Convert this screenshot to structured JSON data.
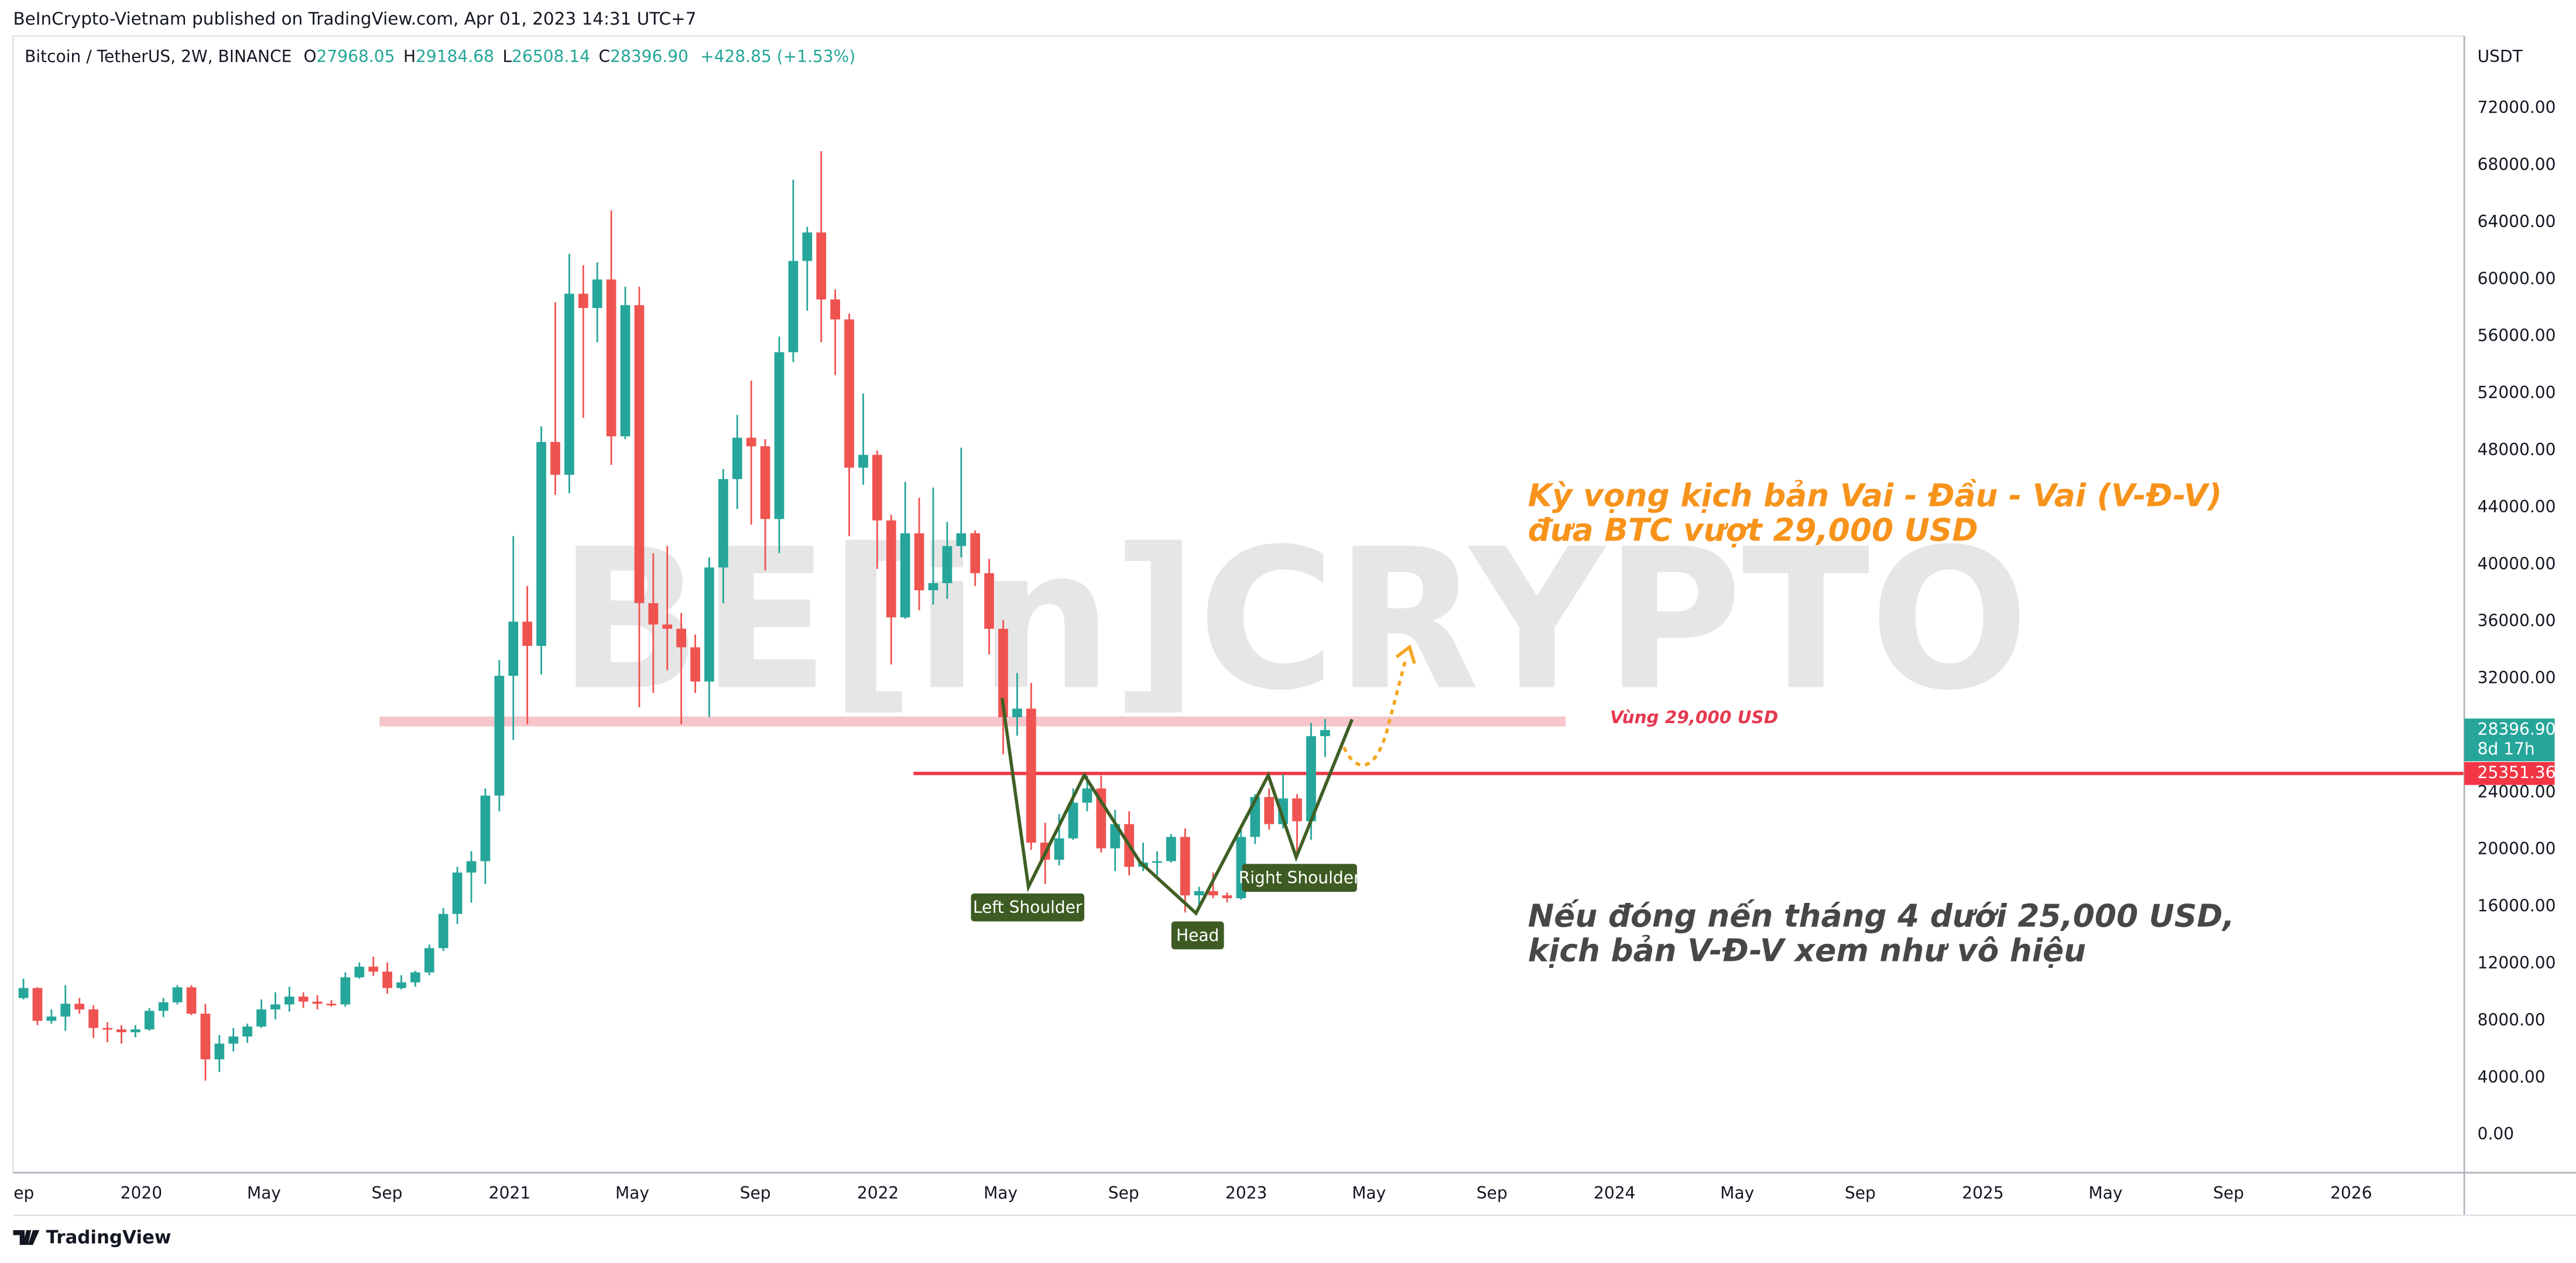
{
  "chart_data": {
    "type": "candlestick",
    "publisher": "BeInCrypto-Vietnam published on TradingView.com, Apr 01, 2023 14:31 UTC+7",
    "title": "Bitcoin / TetherUS, 2W, BINANCE",
    "ohlc_prefixes": [
      "O",
      "H",
      "L",
      "C"
    ],
    "ohlc_value_labels": {
      "open": "27968.05",
      "high": "29184.68",
      "low": "26508.14",
      "close": "28396.90"
    },
    "change_label": "+428.85 (+1.53%)",
    "currency": "USDT",
    "countdown": "8d 17h",
    "up_color": "#26a69a",
    "down_color": "#ef5350",
    "x": [
      2019.68,
      2019.718,
      2019.756,
      2019.794,
      2019.832,
      2019.87,
      2019.908,
      2019.946,
      2019.984,
      2020.022,
      2020.06,
      2020.098,
      2020.136,
      2020.174,
      2020.212,
      2020.25,
      2020.288,
      2020.326,
      2020.364,
      2020.402,
      2020.44,
      2020.478,
      2020.516,
      2020.554,
      2020.592,
      2020.63,
      2020.668,
      2020.706,
      2020.744,
      2020.782,
      2020.82,
      2020.858,
      2020.896,
      2020.934,
      2020.972,
      2021.01,
      2021.048,
      2021.086,
      2021.124,
      2021.162,
      2021.2,
      2021.238,
      2021.276,
      2021.314,
      2021.352,
      2021.39,
      2021.428,
      2021.466,
      2021.504,
      2021.542,
      2021.58,
      2021.618,
      2021.656,
      2021.694,
      2021.732,
      2021.77,
      2021.808,
      2021.846,
      2021.884,
      2021.922,
      2021.96,
      2021.998,
      2022.036,
      2022.074,
      2022.112,
      2022.15,
      2022.188,
      2022.226,
      2022.264,
      2022.302,
      2022.34,
      2022.378,
      2022.416,
      2022.454,
      2022.492,
      2022.53,
      2022.568,
      2022.606,
      2022.644,
      2022.682,
      2022.72,
      2022.758,
      2022.796,
      2022.834,
      2022.872,
      2022.91,
      2022.948,
      2022.986,
      2023.024,
      2023.062,
      2023.1,
      2023.138,
      2023.176,
      2023.214
    ],
    "open": [
      9600,
      10300,
      8000,
      8300,
      9200,
      8800,
      7500,
      7400,
      7200,
      7400,
      8700,
      9300,
      10350,
      8500,
      5300,
      6400,
      6900,
      7600,
      8800,
      9150,
      9700,
      9350,
      9200,
      9150,
      11050,
      11800,
      11450,
      10300,
      10700,
      11400,
      13100,
      15500,
      18400,
      19200,
      23800,
      32200,
      36000,
      34300,
      48600,
      46300,
      59000,
      58000,
      60000,
      49000,
      58200,
      37300,
      35800,
      35500,
      34200,
      31800,
      39800,
      46000,
      48900,
      48300,
      43200,
      54900,
      61300,
      63300,
      58600,
      57200,
      46800,
      47700,
      43100,
      36300,
      42200,
      38200,
      38700,
      41300,
      42200,
      39400,
      35500,
      29300,
      29900,
      20500,
      19300,
      20800,
      23300,
      24300,
      20100,
      21800,
      18800,
      19100,
      19200,
      20900,
      16800,
      17100,
      16800,
      16600,
      20900,
      23700,
      21800,
      23600,
      22000,
      27968.05
    ],
    "high": [
      10950,
      10350,
      8800,
      10500,
      9600,
      9100,
      7900,
      7700,
      7700,
      8900,
      9600,
      10500,
      10500,
      9200,
      7000,
      7500,
      7800,
      9500,
      10000,
      10400,
      10000,
      9800,
      9450,
      11400,
      12100,
      12500,
      12100,
      11200,
      11500,
      13350,
      15900,
      18800,
      19900,
      24300,
      33300,
      42000,
      38500,
      49700,
      58400,
      61800,
      61000,
      61200,
      64850,
      59500,
      59500,
      40800,
      41300,
      36600,
      35100,
      40500,
      46700,
      50500,
      52900,
      48800,
      56000,
      67000,
      63700,
      69000,
      59300,
      57600,
      52000,
      48000,
      43500,
      45800,
      44700,
      45400,
      43000,
      48200,
      42400,
      40400,
      36100,
      32400,
      31700,
      21900,
      22500,
      24300,
      25200,
      25200,
      22800,
      22700,
      20500,
      19900,
      21100,
      21500,
      17400,
      18400,
      17000,
      21400,
      23900,
      24300,
      25300,
      23900,
      28900,
      29184.68
    ],
    "low": [
      9500,
      7700,
      7800,
      7300,
      8500,
      6800,
      6500,
      6400,
      6850,
      7300,
      8250,
      9150,
      8400,
      3800,
      4400,
      5850,
      6450,
      7500,
      8100,
      8650,
      8900,
      8800,
      9000,
      9000,
      10950,
      11150,
      9900,
      10200,
      10400,
      11200,
      12900,
      14800,
      16300,
      17600,
      22700,
      27700,
      28800,
      32300,
      44900,
      45000,
      50300,
      55600,
      47000,
      48800,
      30000,
      31000,
      32600,
      28800,
      31000,
      29300,
      37300,
      43900,
      42800,
      39600,
      40800,
      54200,
      57800,
      55600,
      53300,
      42000,
      45600,
      39700,
      33000,
      36200,
      36800,
      37200,
      37600,
      40500,
      38500,
      33700,
      26700,
      28000,
      20000,
      17600,
      18900,
      20700,
      22700,
      19800,
      18500,
      18200,
      18500,
      18200,
      19100,
      15600,
      15900,
      16600,
      16300,
      16500,
      20400,
      21400,
      21500,
      19600,
      20700,
      26508.14
    ],
    "close": [
      10300,
      8000,
      8300,
      9200,
      8800,
      7500,
      7400,
      7200,
      7400,
      8700,
      9300,
      10350,
      8500,
      5300,
      6400,
      6900,
      7600,
      8800,
      9150,
      9700,
      9350,
      9200,
      9150,
      11050,
      11800,
      11450,
      10300,
      10700,
      11400,
      13100,
      15500,
      18400,
      19200,
      23800,
      32200,
      36000,
      34300,
      48600,
      46300,
      59000,
      58000,
      60000,
      49000,
      58200,
      37300,
      35800,
      35500,
      34200,
      31800,
      39800,
      46000,
      48900,
      48300,
      43200,
      54900,
      61300,
      63300,
      58600,
      57200,
      46800,
      47700,
      43100,
      36300,
      42200,
      38200,
      38700,
      41300,
      42200,
      39400,
      35500,
      29300,
      29900,
      20500,
      19300,
      20800,
      23300,
      24300,
      20100,
      21800,
      18800,
      19100,
      19200,
      20900,
      16800,
      17100,
      16800,
      16600,
      20900,
      23700,
      21800,
      23600,
      22000,
      27968.05,
      28396.9
    ],
    "xlim": [
      2019.652,
      2026.307
    ],
    "xticks": [
      {
        "value": 2019.667,
        "label": "Sep"
      },
      2020,
      {
        "value": 2020.333,
        "label": "May"
      },
      {
        "value": 2020.667,
        "label": "Sep"
      },
      2021,
      {
        "value": 2021.333,
        "label": "May"
      },
      {
        "value": 2021.667,
        "label": "Sep"
      },
      2022,
      {
        "value": 2022.333,
        "label": "May"
      },
      {
        "value": 2022.667,
        "label": "Sep"
      },
      2023,
      {
        "value": 2023.333,
        "label": "May"
      },
      {
        "value": 2023.667,
        "label": "Sep"
      },
      2024,
      {
        "value": 2024.333,
        "label": "May"
      },
      {
        "value": 2024.667,
        "label": "Sep"
      },
      2025,
      {
        "value": 2025.333,
        "label": "May"
      },
      {
        "value": 2025.667,
        "label": "Sep"
      },
      2026
    ],
    "ylim": [
      -2650,
      77069
    ],
    "yticks": [
      {
        "value": 0,
        "label": "0.00"
      },
      {
        "value": 4000,
        "label": "4000.00"
      },
      {
        "value": 8000,
        "label": "8000.00"
      },
      {
        "value": 12000,
        "label": "12000.00"
      },
      {
        "value": 16000,
        "label": "16000.00"
      },
      {
        "value": 20000,
        "label": "20000.00"
      },
      {
        "value": 24000,
        "label": "24000.00"
      },
      {
        "value": 32000,
        "label": "32000.00"
      },
      {
        "value": 36000,
        "label": "36000.00"
      },
      {
        "value": 40000,
        "label": "40000.00"
      },
      {
        "value": 44000,
        "label": "44000.00"
      },
      {
        "value": 48000,
        "label": "48000.00"
      },
      {
        "value": 52000,
        "label": "52000.00"
      },
      {
        "value": 56000,
        "label": "56000.00"
      },
      {
        "value": 60000,
        "label": "60000.00"
      },
      {
        "value": 64000,
        "label": "64000.00"
      },
      {
        "value": 68000,
        "label": "68000.00"
      },
      {
        "value": 72000,
        "label": "72000.00"
      }
    ],
    "grid": false,
    "level": {
      "value": 25351.36,
      "color": "#f23645"
    },
    "zone": {
      "value": 29000,
      "label": "Vùng 29,000 USD",
      "color": "#f7c5cb"
    },
    "pattern_labels": [
      "Left Shoulder",
      "Head",
      "Right Shoulder"
    ],
    "annotation_bullish": [
      "Kỳ vọng kịch bản Vai - Đầu - Vai (V-Đ-V)",
      "đưa BTC vượt 29,000 USD"
    ],
    "annotation_bearish": [
      "Nếu đóng nến tháng 4 dưới 25,000 USD,",
      "kịch bản V-Đ-V xem như vô hiệu"
    ],
    "watermark": "BE[in]CRYPTO",
    "footer": "TradingView"
  }
}
